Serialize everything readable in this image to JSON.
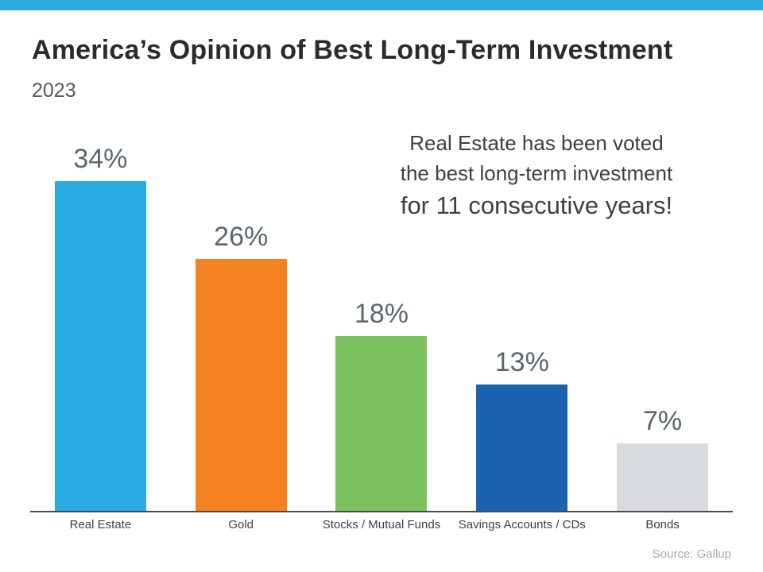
{
  "page": {
    "title": "America’s Opinion of Best Long-Term Investment",
    "subtitle": "2023",
    "source": "Source: Gallup",
    "accent_color": "#29ABE2"
  },
  "annotation": {
    "line1": "Real Estate has been voted",
    "line2": "the best long-term investment",
    "line3": "for 11 consecutive years!"
  },
  "chart_data": {
    "type": "bar",
    "title": "America’s Opinion of Best Long-Term Investment",
    "subtitle": "2023",
    "categories": [
      "Real Estate",
      "Gold",
      "Stocks / Mutual Funds",
      "Savings Accounts / CDs",
      "Bonds"
    ],
    "values": [
      34,
      26,
      18,
      13,
      7
    ],
    "value_labels": [
      "34%",
      "26%",
      "18%",
      "13%",
      "7%"
    ],
    "colors": [
      "#29ABE2",
      "#F58220",
      "#7AC35F",
      "#1B63B0",
      "#D9DCDE"
    ],
    "ylim": [
      0,
      34
    ],
    "grid": false,
    "legend": "none",
    "source": "Source: Gallup"
  }
}
